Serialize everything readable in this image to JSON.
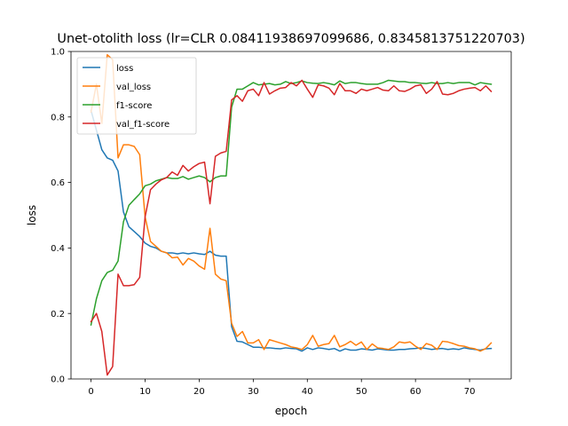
{
  "chart_data": {
    "type": "line",
    "title": "Unet-otolith loss (lr=CLR 0.08411938697099686, 0.8345813751220703)",
    "xlabel": "epoch",
    "ylabel": "loss",
    "xlim": [
      -3.7,
      77.7
    ],
    "ylim": [
      0.0,
      1.0
    ],
    "xticks": [
      0,
      10,
      20,
      30,
      40,
      50,
      60,
      70
    ],
    "yticks": [
      0.0,
      0.2,
      0.4,
      0.6,
      0.8,
      1.0
    ],
    "xtick_labels": [
      "0",
      "10",
      "20",
      "30",
      "40",
      "50",
      "60",
      "70"
    ],
    "ytick_labels": [
      "0.0",
      "0.2",
      "0.4",
      "0.6",
      "0.8",
      "1.0"
    ],
    "grid": false,
    "legend_position": "top-left",
    "x": [
      0,
      1,
      2,
      3,
      4,
      5,
      6,
      7,
      8,
      9,
      10,
      11,
      12,
      13,
      14,
      15,
      16,
      17,
      18,
      19,
      20,
      21,
      22,
      23,
      24,
      25,
      26,
      27,
      28,
      29,
      30,
      31,
      32,
      33,
      34,
      35,
      36,
      37,
      38,
      39,
      40,
      41,
      42,
      43,
      44,
      45,
      46,
      47,
      48,
      49,
      50,
      51,
      52,
      53,
      54,
      55,
      56,
      57,
      58,
      59,
      60,
      61,
      62,
      63,
      64,
      65,
      66,
      67,
      68,
      69,
      70,
      71,
      72,
      73,
      74
    ],
    "series": [
      {
        "name": "loss",
        "color": "#1f77b4",
        "values": [
          0.82,
          0.76,
          0.7,
          0.675,
          0.668,
          0.635,
          0.51,
          0.465,
          0.45,
          0.435,
          0.415,
          0.405,
          0.4,
          0.39,
          0.385,
          0.385,
          0.382,
          0.385,
          0.382,
          0.385,
          0.382,
          0.38,
          0.39,
          0.378,
          0.375,
          0.375,
          0.16,
          0.115,
          0.113,
          0.105,
          0.097,
          0.097,
          0.095,
          0.095,
          0.093,
          0.092,
          0.095,
          0.093,
          0.092,
          0.085,
          0.095,
          0.09,
          0.095,
          0.093,
          0.09,
          0.093,
          0.085,
          0.092,
          0.088,
          0.088,
          0.092,
          0.09,
          0.088,
          0.092,
          0.09,
          0.088,
          0.088,
          0.09,
          0.09,
          0.092,
          0.093,
          0.095,
          0.093,
          0.09,
          0.092,
          0.093,
          0.09,
          0.092,
          0.09,
          0.095,
          0.092,
          0.09,
          0.088,
          0.092,
          0.093
        ]
      },
      {
        "name": "val_loss",
        "color": "#ff7f0e",
        "values": [
          0.815,
          0.9,
          0.78,
          0.99,
          0.975,
          0.675,
          0.715,
          0.715,
          0.71,
          0.685,
          0.495,
          0.42,
          0.405,
          0.39,
          0.385,
          0.37,
          0.372,
          0.348,
          0.368,
          0.36,
          0.345,
          0.335,
          0.46,
          0.32,
          0.305,
          0.3,
          0.17,
          0.13,
          0.145,
          0.11,
          0.11,
          0.12,
          0.09,
          0.12,
          0.115,
          0.11,
          0.105,
          0.098,
          0.095,
          0.09,
          0.105,
          0.133,
          0.1,
          0.105,
          0.108,
          0.133,
          0.098,
          0.105,
          0.115,
          0.103,
          0.113,
          0.09,
          0.107,
          0.095,
          0.093,
          0.09,
          0.098,
          0.113,
          0.11,
          0.113,
          0.1,
          0.09,
          0.108,
          0.103,
          0.09,
          0.115,
          0.113,
          0.108,
          0.102,
          0.1,
          0.095,
          0.092,
          0.085,
          0.093,
          0.11
        ]
      },
      {
        "name": "f1-score",
        "color": "#2ca02c",
        "values": [
          0.165,
          0.245,
          0.3,
          0.325,
          0.332,
          0.36,
          0.48,
          0.53,
          0.548,
          0.565,
          0.59,
          0.595,
          0.605,
          0.61,
          0.615,
          0.612,
          0.612,
          0.618,
          0.61,
          0.615,
          0.62,
          0.615,
          0.602,
          0.615,
          0.62,
          0.62,
          0.83,
          0.885,
          0.885,
          0.895,
          0.905,
          0.898,
          0.9,
          0.902,
          0.898,
          0.9,
          0.908,
          0.902,
          0.905,
          0.91,
          0.905,
          0.903,
          0.902,
          0.905,
          0.902,
          0.898,
          0.91,
          0.902,
          0.905,
          0.905,
          0.902,
          0.9,
          0.9,
          0.9,
          0.905,
          0.912,
          0.91,
          0.908,
          0.908,
          0.905,
          0.905,
          0.903,
          0.902,
          0.905,
          0.902,
          0.902,
          0.905,
          0.902,
          0.905,
          0.905,
          0.905,
          0.898,
          0.905,
          0.902,
          0.9
        ]
      },
      {
        "name": "val_f1-score",
        "color": "#d62728",
        "values": [
          0.175,
          0.2,
          0.145,
          0.012,
          0.038,
          0.32,
          0.285,
          0.285,
          0.288,
          0.31,
          0.495,
          0.578,
          0.595,
          0.608,
          0.615,
          0.632,
          0.622,
          0.652,
          0.635,
          0.648,
          0.658,
          0.662,
          0.535,
          0.68,
          0.69,
          0.695,
          0.852,
          0.865,
          0.848,
          0.88,
          0.885,
          0.865,
          0.905,
          0.87,
          0.88,
          0.888,
          0.89,
          0.905,
          0.895,
          0.912,
          0.885,
          0.86,
          0.898,
          0.895,
          0.888,
          0.868,
          0.902,
          0.88,
          0.88,
          0.872,
          0.885,
          0.88,
          0.885,
          0.89,
          0.882,
          0.88,
          0.895,
          0.88,
          0.878,
          0.885,
          0.895,
          0.898,
          0.872,
          0.885,
          0.908,
          0.87,
          0.868,
          0.872,
          0.88,
          0.885,
          0.888,
          0.89,
          0.88,
          0.895,
          0.878
        ]
      }
    ]
  }
}
